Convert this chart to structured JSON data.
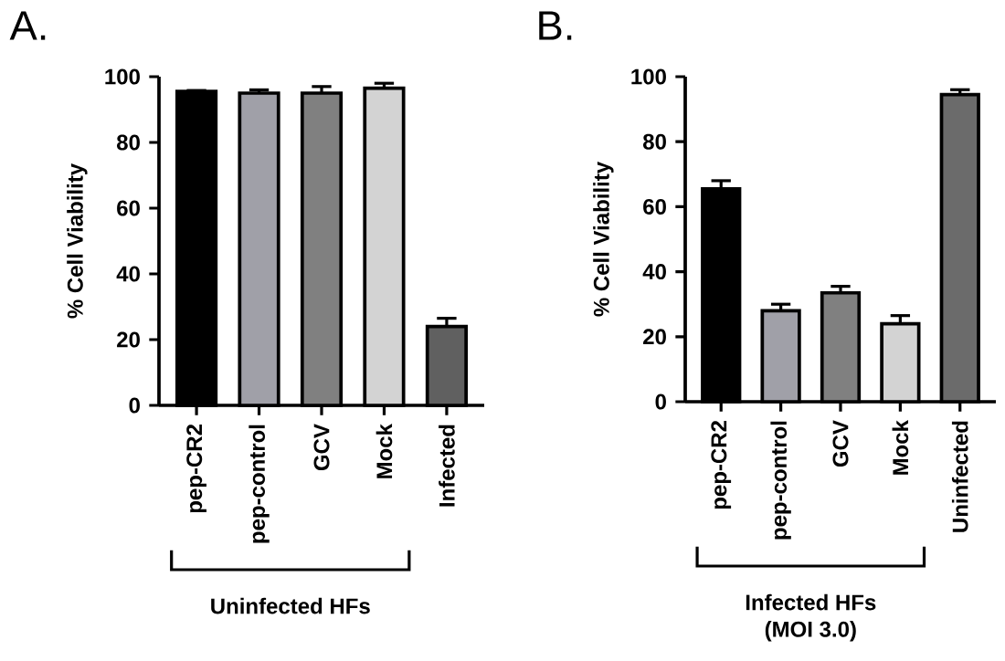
{
  "chart_data": [
    {
      "type": "bar",
      "title": "A.",
      "ylabel": "% Cell Viability",
      "categories": [
        "pep-CR2",
        "pep-control",
        "GCV",
        "Mock",
        "Infected"
      ],
      "values": [
        95.5,
        95,
        95,
        96.5,
        24
      ],
      "errors": [
        0.3,
        1,
        2,
        1.5,
        2.5
      ],
      "colors": [
        "#000000",
        "#a0a0a8",
        "#808080",
        "#d3d3d3",
        "#606060"
      ],
      "ylim": [
        0,
        100
      ],
      "yticks": [
        0,
        20,
        40,
        60,
        80,
        100
      ],
      "annotations": [
        "Uninfected HFs"
      ]
    },
    {
      "type": "bar",
      "title": "B.",
      "ylabel": "% Cell Viability",
      "categories": [
        "pep-CR2",
        "pep-control",
        "GCV",
        "Mock",
        "Uninfected"
      ],
      "values": [
        65.5,
        28,
        33.5,
        24,
        94.5
      ],
      "errors": [
        2.5,
        2,
        2,
        2.5,
        1.5
      ],
      "colors": [
        "#000000",
        "#a0a0a8",
        "#808080",
        "#d3d3d3",
        "#6b6b6b"
      ],
      "ylim": [
        0,
        100
      ],
      "yticks": [
        0,
        20,
        40,
        60,
        80,
        100
      ],
      "annotations": [
        "Infected HFs",
        "(MOI 3.0)"
      ]
    }
  ]
}
